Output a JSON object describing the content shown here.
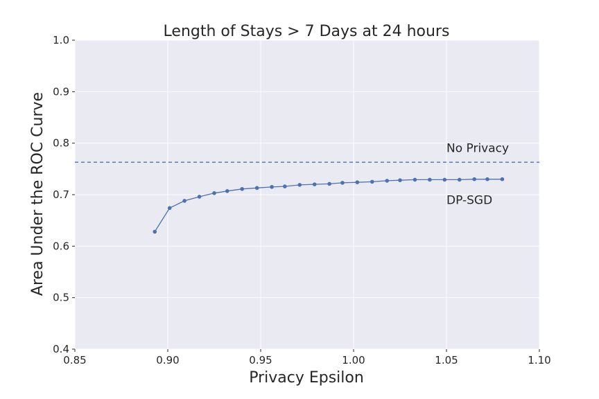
{
  "chart_data": {
    "type": "line",
    "title": "Length of Stays > 7 Days at 24 hours",
    "xlabel": "Privacy Epsilon",
    "ylabel": "Area Under the ROC Curve",
    "xlim": [
      0.85,
      1.1
    ],
    "ylim": [
      0.4,
      1.0
    ],
    "xticks": [
      0.85,
      0.9,
      0.95,
      1.0,
      1.05,
      1.1
    ],
    "xtick_labels": [
      "0.85",
      "0.90",
      "0.95",
      "1.00",
      "1.05",
      "1.10"
    ],
    "yticks": [
      0.4,
      0.5,
      0.6,
      0.7,
      0.8,
      0.9,
      1.0
    ],
    "ytick_labels": [
      "0.4",
      "0.5",
      "0.6",
      "0.7",
      "0.8",
      "0.9",
      "1.0"
    ],
    "grid": true,
    "colors": {
      "background": "#eaeaf2",
      "grid": "#ffffff",
      "series": "#4c72b0"
    },
    "series": [
      {
        "label": "DP-SGD",
        "x": [
          0.893,
          0.901,
          0.909,
          0.917,
          0.925,
          0.932,
          0.94,
          0.948,
          0.956,
          0.963,
          0.971,
          0.979,
          0.987,
          0.994,
          1.002,
          1.01,
          1.018,
          1.025,
          1.033,
          1.041,
          1.049,
          1.057,
          1.065,
          1.072,
          1.08
        ],
        "y": [
          0.628,
          0.674,
          0.688,
          0.696,
          0.703,
          0.707,
          0.711,
          0.713,
          0.715,
          0.716,
          0.719,
          0.72,
          0.721,
          0.723,
          0.724,
          0.725,
          0.727,
          0.728,
          0.729,
          0.729,
          0.729,
          0.729,
          0.73,
          0.73,
          0.73
        ]
      }
    ],
    "reference_line": {
      "label": "No Privacy",
      "y": 0.763,
      "style": "dashed"
    },
    "annotations": [
      {
        "text": "No Privacy",
        "x": 1.05,
        "y": 0.783
      },
      {
        "text": "DP-SGD",
        "x": 1.05,
        "y": 0.682
      }
    ]
  }
}
